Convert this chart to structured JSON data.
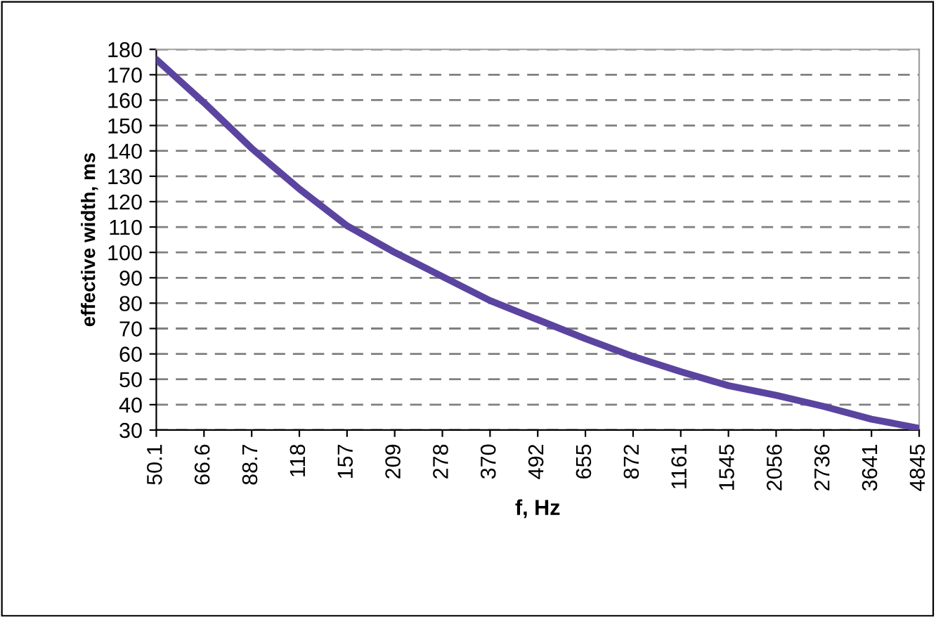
{
  "chart_data": {
    "type": "line",
    "xlabel": "f, Hz",
    "ylabel": "effective width, ms",
    "categories": [
      "50.1",
      "66.6",
      "88.7",
      "118",
      "157",
      "209",
      "278",
      "370",
      "492",
      "655",
      "872",
      "1161",
      "1545",
      "2056",
      "2736",
      "3641",
      "4845"
    ],
    "series": [
      {
        "color": "#5b44a0",
        "values": [
          176,
          159,
          141,
          125,
          110.5,
          100,
          90.5,
          81,
          73.5,
          66,
          59,
          53,
          47.5,
          43.7,
          39.3,
          34.3,
          30.7
        ]
      }
    ],
    "ylim": [
      30,
      180
    ],
    "yticks": [
      30,
      40,
      50,
      60,
      70,
      80,
      90,
      100,
      110,
      120,
      130,
      140,
      150,
      160,
      170,
      180
    ],
    "grid": "y",
    "line_style": "solid",
    "marker": "none",
    "legend": false
  }
}
